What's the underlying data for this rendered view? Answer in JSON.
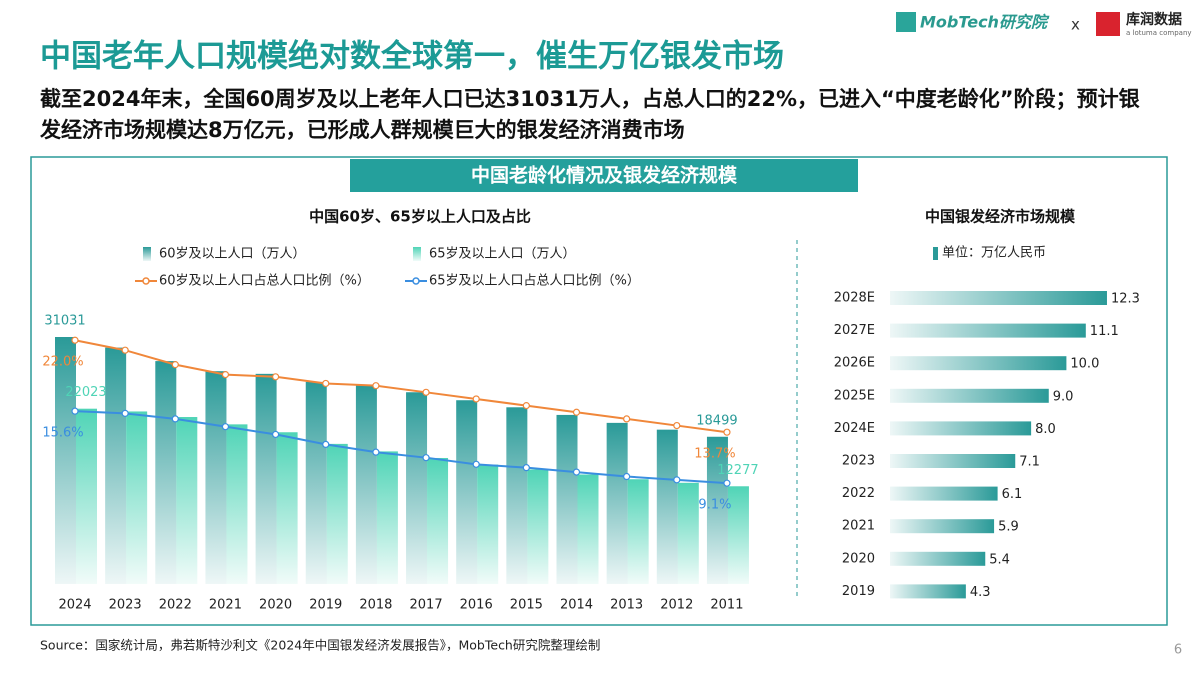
{
  "header": {
    "logo": "MobTech研究院",
    "separator": "x",
    "partner": "库润数据",
    "partner_tagline": "a lotuma company",
    "title": "中国老年人口规模绝对数全球第一，催生万亿银发市场",
    "subtitle": "截至2024年末，全国60周岁及以上老年人口已达31031万人，占总人口的22%，已进入“中度老龄化”阶段；预计银发经济市场规模达8万亿元，已形成人群规模巨大的银发经济消费市场",
    "panel_title": "中国老龄化情况及银发经济规模"
  },
  "chart_data": [
    {
      "type": "bar",
      "title": "中国60岁、65岁以上人口及占比",
      "categories": [
        "2024",
        "2023",
        "2022",
        "2021",
        "2020",
        "2019",
        "2018",
        "2017",
        "2016",
        "2015",
        "2014",
        "2013",
        "2012",
        "2011"
      ],
      "series": [
        {
          "name": "60岁及以上人口（万人）",
          "type": "bar",
          "color": "#2a9a98",
          "values": [
            31031,
            29697,
            28004,
            26736,
            26402,
            25388,
            24949,
            24090,
            23086,
            22200,
            21242,
            20243,
            19390,
            18499
          ],
          "value_labels": [
            "31031",
            null,
            null,
            null,
            null,
            null,
            null,
            null,
            null,
            null,
            null,
            null,
            null,
            "18499"
          ]
        },
        {
          "name": "65岁及以上人口（万人）",
          "type": "bar",
          "color": "#4fd4b6",
          "values": [
            22023,
            21676,
            20978,
            20056,
            19064,
            17603,
            16658,
            15831,
            15003,
            14386,
            13755,
            13161,
            12714,
            12277
          ],
          "value_labels": [
            "22023",
            null,
            null,
            null,
            null,
            null,
            null,
            null,
            null,
            null,
            null,
            null,
            null,
            "12277"
          ]
        },
        {
          "name": "60岁及以上人口占总人口比例（%）",
          "type": "line",
          "color": "#f0873a",
          "values": [
            22.0,
            21.1,
            19.8,
            18.9,
            18.7,
            18.1,
            17.9,
            17.3,
            16.7,
            16.1,
            15.5,
            14.9,
            14.3,
            13.7
          ],
          "value_labels": [
            "22.0%",
            null,
            null,
            null,
            null,
            null,
            null,
            null,
            null,
            null,
            null,
            null,
            null,
            "13.7%"
          ]
        },
        {
          "name": "65岁及以上人口占总人口比例（%）",
          "type": "line",
          "color": "#3a8ee0",
          "values": [
            15.6,
            15.4,
            14.9,
            14.2,
            13.5,
            12.6,
            11.9,
            11.4,
            10.8,
            10.5,
            10.1,
            9.7,
            9.4,
            9.1
          ],
          "value_labels": [
            "15.6%",
            null,
            null,
            null,
            null,
            null,
            null,
            null,
            null,
            null,
            null,
            null,
            null,
            "9.1%"
          ]
        }
      ]
    },
    {
      "type": "barh",
      "title": "中国银发经济市场规模",
      "categories": [
        "2028E",
        "2027E",
        "2026E",
        "2025E",
        "2024E",
        "2023",
        "2022",
        "2021",
        "2020",
        "2019"
      ],
      "series": [
        {
          "name": "单位：万亿人民币",
          "color": "#2a9a98",
          "values": [
            12.3,
            11.1,
            10.0,
            9.0,
            8.0,
            7.1,
            6.1,
            5.9,
            5.4,
            4.3
          ],
          "value_labels": [
            "12.3",
            "11.1",
            "10.0",
            "9.0",
            "8.0",
            "7.1",
            "6.1",
            "5.9",
            "5.4",
            "4.3"
          ]
        }
      ]
    }
  ],
  "footer": {
    "source": "Source：国家统计局，弗若斯特沙利文《2024年中国银发经济发展报告》，MobTech研究院整理绘制",
    "page": "6"
  }
}
